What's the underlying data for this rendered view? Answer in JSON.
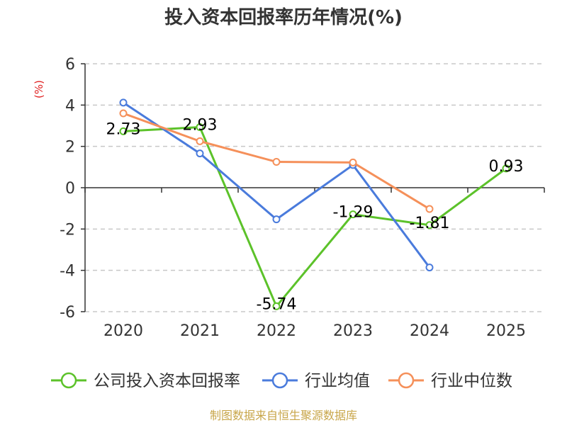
{
  "chart_data": {
    "type": "line",
    "title": "投入资本回报率历年情况(%)",
    "ylabel": "(%)",
    "xlabel": "",
    "categories": [
      "2020",
      "2021",
      "2022",
      "2023",
      "2024",
      "2025"
    ],
    "ylim": [
      -6,
      6
    ],
    "yticks": [
      -6,
      -4,
      -2,
      0,
      2,
      4,
      6
    ],
    "grid": true,
    "legend_position": "bottom",
    "series": [
      {
        "name": "公司投入资本回报率",
        "color": "#5cc22a",
        "values": [
          2.73,
          2.93,
          -5.74,
          -1.29,
          -1.81,
          0.93
        ],
        "labels": [
          "2.73",
          "2.93",
          "-5.74",
          "-1.29",
          "-1.81",
          "0.93"
        ]
      },
      {
        "name": "行业均值",
        "color": "#4a7bdc",
        "values": [
          4.12,
          1.66,
          -1.53,
          1.1,
          -3.86,
          null
        ]
      },
      {
        "name": "行业中位数",
        "color": "#f5905a",
        "values": [
          3.6,
          2.25,
          1.25,
          1.22,
          -1.03,
          null
        ]
      }
    ],
    "source": "制图数据来自恒生聚源数据库"
  }
}
